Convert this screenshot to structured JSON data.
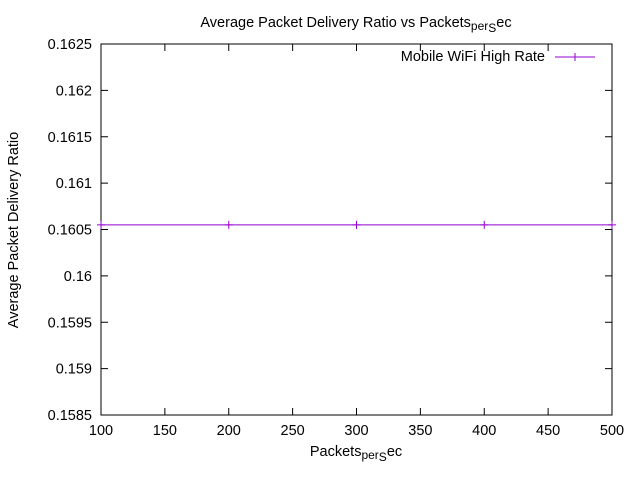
{
  "chart_data": {
    "type": "line",
    "title": {
      "prefix": "Average Packet Delivery Ratio vs Packets",
      "sub1": "per",
      "sub2": "S",
      "suffix": "ec"
    },
    "xlabel": {
      "prefix": "Packets",
      "sub1": "per",
      "sub2": "S",
      "suffix": "ec"
    },
    "ylabel": "Average Packet Delivery Ratio",
    "xlim": [
      100,
      500
    ],
    "ylim": [
      0.1585,
      0.1625
    ],
    "xticks": [
      100,
      150,
      200,
      250,
      300,
      350,
      400,
      450,
      500
    ],
    "yticks": [
      "0.1585",
      "0.159",
      "0.1595",
      "0.16",
      "0.1605",
      "0.161",
      "0.1615",
      "0.162",
      "0.1625"
    ],
    "grid": false,
    "legend_position": "top-right",
    "series": [
      {
        "name": "Mobile WiFi High Rate",
        "color": "#9400d3",
        "marker": "plus",
        "x": [
          100,
          200,
          300,
          400,
          500
        ],
        "y": [
          0.16055,
          0.16055,
          0.16055,
          0.16055,
          0.16055
        ]
      }
    ]
  }
}
